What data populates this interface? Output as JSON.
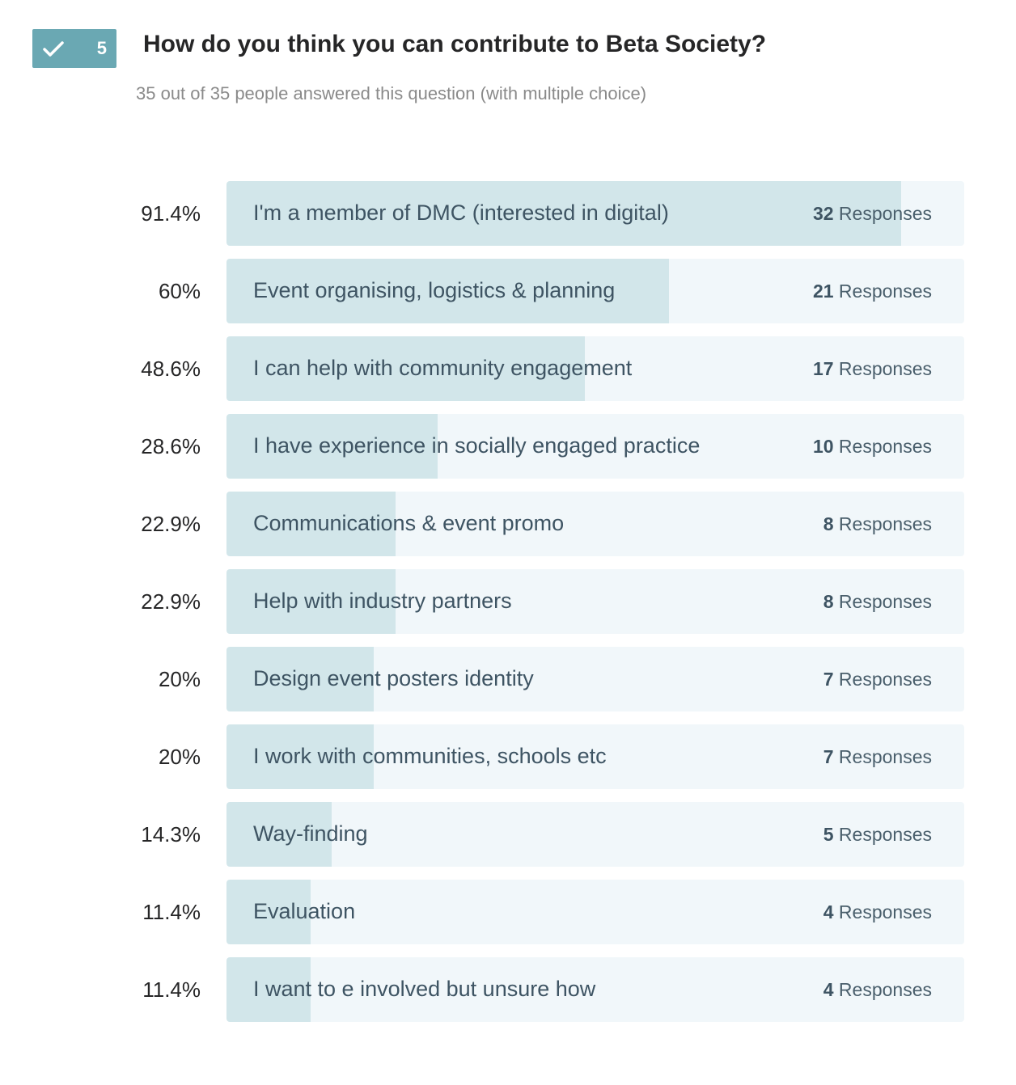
{
  "question": {
    "number": "5",
    "check_icon": "check-icon",
    "title": "How do you think you can contribute to Beta Society?",
    "subtitle": "35 out of 35 people answered this question (with multiple choice)"
  },
  "colors": {
    "badge": "#6aa8b3",
    "track": "#f1f7fa",
    "fill": "#d2e6ea",
    "label_text": "#3e5463"
  },
  "chart_data": {
    "type": "bar",
    "orientation": "horizontal",
    "total_respondents": 35,
    "response_suffix": "Responses",
    "categories": [
      "I'm a member of DMC (interested in digital)",
      "Event organising, logistics & planning",
      "I can help with community engagement",
      "I have experience in socially engaged practice",
      "Communications & event promo",
      "Help with industry partners",
      "Design event posters identity",
      "I work with communities, schools etc",
      "Way-finding",
      "Evaluation",
      "I want to e involved but unsure how"
    ],
    "percent_labels": [
      "91.4%",
      "60%",
      "48.6%",
      "28.6%",
      "22.9%",
      "22.9%",
      "20%",
      "20%",
      "14.3%",
      "11.4%",
      "11.4%"
    ],
    "values": [
      32,
      21,
      17,
      10,
      8,
      8,
      7,
      7,
      5,
      4,
      4
    ],
    "percentages": [
      91.4,
      60,
      48.6,
      28.6,
      22.9,
      22.9,
      20,
      20,
      14.3,
      11.4,
      11.4
    ],
    "xlim": [
      0,
      100
    ]
  }
}
